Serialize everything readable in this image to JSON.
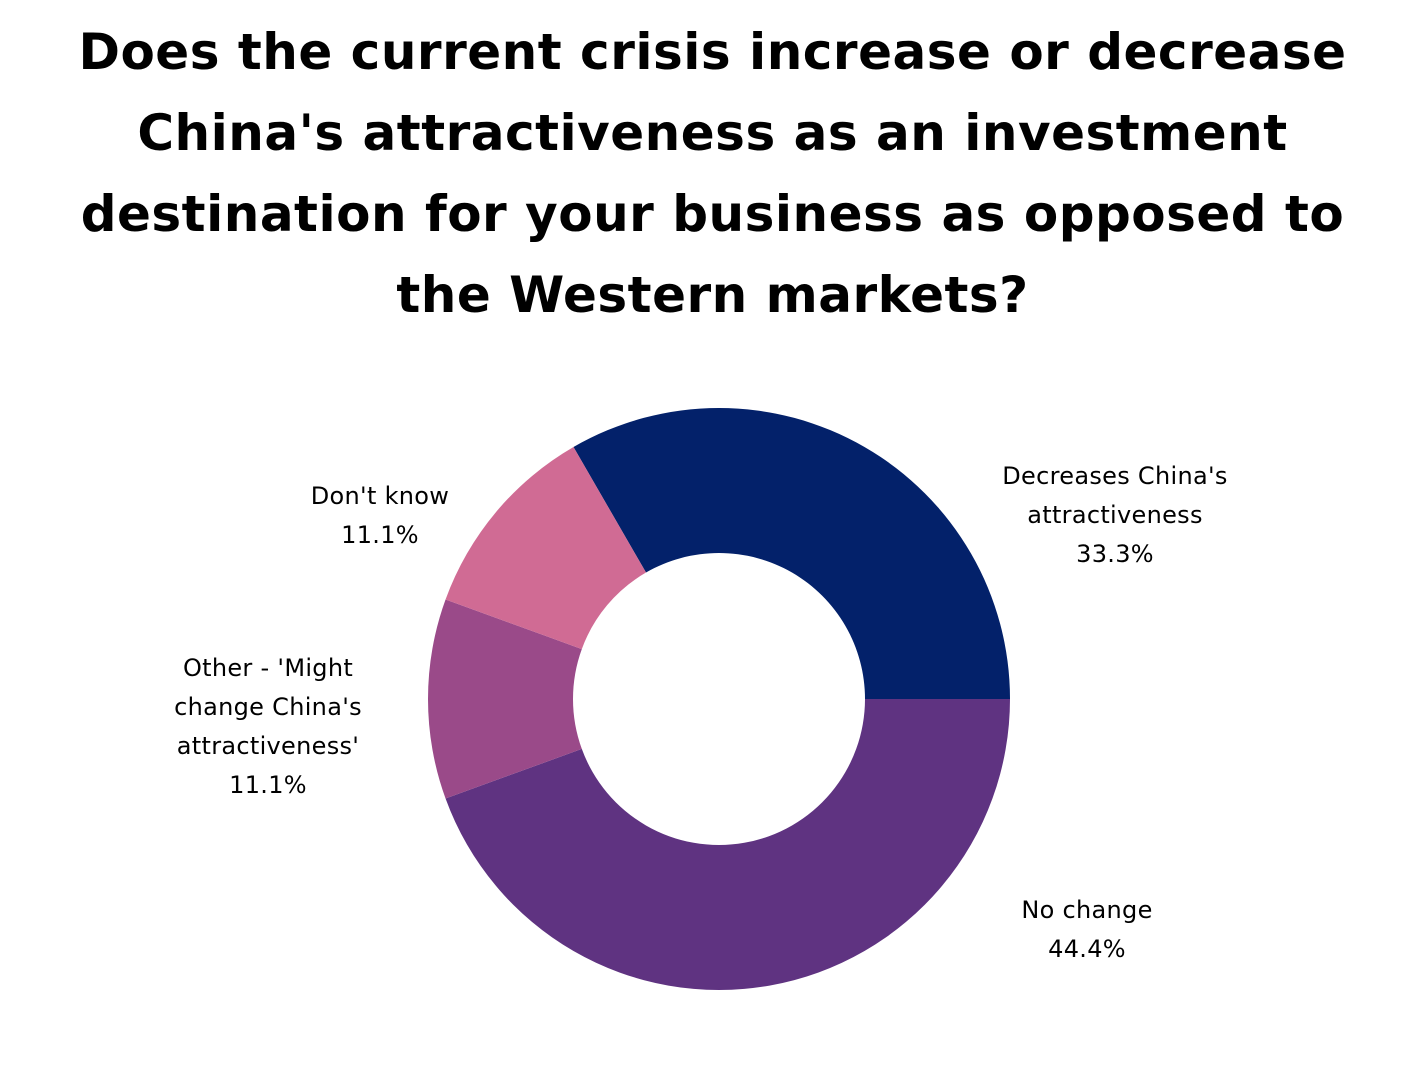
{
  "title_lines": [
    "Does the current crisis increase or decrease",
    "China's attractiveness as an investment",
    "destination for your business as opposed to",
    "the Western markets?"
  ],
  "chart_data": {
    "type": "pie",
    "donut": true,
    "title": "Does the current crisis increase or decrease China's attractiveness as an investment destination for your business as opposed to the Western markets?",
    "unit": "%",
    "legend": "none (labels beside slices)",
    "slices": [
      {
        "label": "Decreases China's attractiveness",
        "label_lines": [
          "Decreases China's",
          "attractiveness"
        ],
        "value": 33.3,
        "value_label": "33.3%",
        "color": "#03216a"
      },
      {
        "label": "No change",
        "label_lines": [
          "No change"
        ],
        "value": 44.4,
        "value_label": "44.4%",
        "color": "#5f3381"
      },
      {
        "label": "Other - 'Might change China's attractiveness'",
        "label_lines": [
          "Other - 'Might",
          "change China's",
          "attractiveness'"
        ],
        "value": 11.1,
        "value_label": "11.1%",
        "color": "#9a4a89"
      },
      {
        "label": "Don't know",
        "label_lines": [
          "Don't know"
        ],
        "value": 11.1,
        "value_label": "11.1%",
        "color": "#d06b94"
      }
    ]
  }
}
